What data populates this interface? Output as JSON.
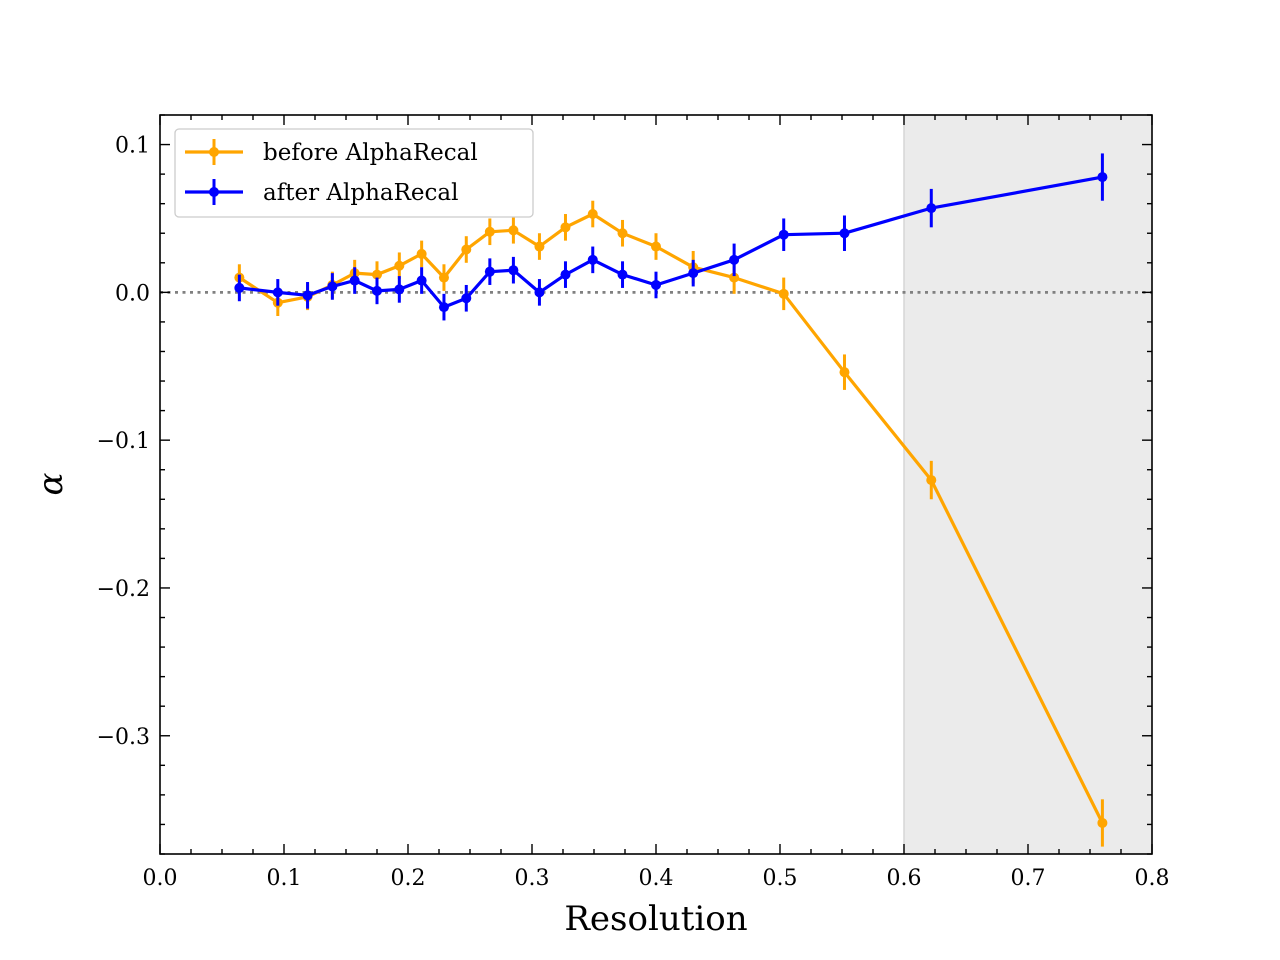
{
  "chart_data": {
    "type": "line",
    "title": "",
    "xlabel": "Resolution",
    "ylabel": "α",
    "xlim": [
      0.0,
      0.8
    ],
    "ylim": [
      -0.38,
      0.12
    ],
    "x_ticks": [
      0.0,
      0.1,
      0.2,
      0.3,
      0.4,
      0.5,
      0.6,
      0.7,
      0.8
    ],
    "x_tick_labels": [
      "0.0",
      "0.1",
      "0.2",
      "0.3",
      "0.4",
      "0.5",
      "0.6",
      "0.7",
      "0.8"
    ],
    "y_ticks": [
      0.1,
      0.0,
      -0.1,
      -0.2,
      -0.3
    ],
    "y_tick_labels": [
      "0.1",
      "0.0",
      "−0.1",
      "−0.2",
      "−0.3"
    ],
    "reference_line": {
      "y": 0.0,
      "style": "dotted",
      "color": "#808080"
    },
    "shaded_region": {
      "x_from": 0.6,
      "x_to": 0.8,
      "color": "#ebebeb"
    },
    "legend_position": "upper-left",
    "grid": false,
    "series": [
      {
        "name": "before AlphaRecal",
        "color": "#FFA500",
        "x": [
          0.064,
          0.095,
          0.119,
          0.139,
          0.157,
          0.175,
          0.193,
          0.211,
          0.229,
          0.247,
          0.266,
          0.285,
          0.306,
          0.327,
          0.349,
          0.373,
          0.4,
          0.43,
          0.463,
          0.503,
          0.552,
          0.622,
          0.76
        ],
        "y": [
          0.01,
          -0.007,
          -0.003,
          0.005,
          0.013,
          0.012,
          0.018,
          0.026,
          0.01,
          0.029,
          0.041,
          0.042,
          0.031,
          0.044,
          0.053,
          0.04,
          0.031,
          0.017,
          0.01,
          -0.001,
          -0.054,
          -0.127,
          -0.359
        ],
        "yerr": [
          0.009,
          0.009,
          0.009,
          0.009,
          0.009,
          0.009,
          0.009,
          0.009,
          0.009,
          0.009,
          0.009,
          0.009,
          0.009,
          0.009,
          0.009,
          0.009,
          0.009,
          0.011,
          0.011,
          0.011,
          0.012,
          0.013,
          0.016
        ]
      },
      {
        "name": "after AlphaRecal",
        "color": "#0000FF",
        "x": [
          0.064,
          0.095,
          0.119,
          0.139,
          0.157,
          0.175,
          0.193,
          0.211,
          0.229,
          0.247,
          0.266,
          0.285,
          0.306,
          0.327,
          0.349,
          0.373,
          0.4,
          0.43,
          0.463,
          0.503,
          0.552,
          0.622,
          0.76
        ],
        "y": [
          0.003,
          0.0,
          -0.002,
          0.004,
          0.008,
          0.001,
          0.002,
          0.008,
          -0.01,
          -0.004,
          0.014,
          0.015,
          0.0,
          0.012,
          0.022,
          0.012,
          0.005,
          0.013,
          0.022,
          0.039,
          0.04,
          0.057,
          0.078
        ],
        "yerr": [
          0.009,
          0.009,
          0.009,
          0.009,
          0.009,
          0.009,
          0.009,
          0.009,
          0.009,
          0.009,
          0.009,
          0.009,
          0.009,
          0.009,
          0.009,
          0.009,
          0.009,
          0.009,
          0.011,
          0.011,
          0.012,
          0.013,
          0.016
        ]
      }
    ]
  }
}
